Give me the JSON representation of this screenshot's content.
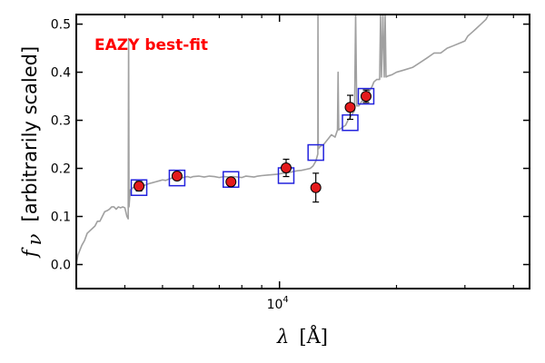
{
  "chart_data": {
    "type": "scatter",
    "title": "",
    "xlabel_var": "λ",
    "xlabel_unit": "[Å]",
    "ylabel_var": "f",
    "ylabel_sub": "ν",
    "ylabel_text": "[arbitrarily scaled]",
    "annotation": "EAZY best-fit",
    "x_scale": "log",
    "xlim": [
      3000,
      44000
    ],
    "ylim": [
      -0.05,
      0.52
    ],
    "yticks": [
      0.0,
      0.1,
      0.2,
      0.3,
      0.4,
      0.5
    ],
    "ytick_labels": [
      "0.0",
      "0.1",
      "0.2",
      "0.3",
      "0.4",
      "0.5"
    ],
    "xticks_major": [
      10000
    ],
    "xtick_major_labels": [
      {
        "base": "10",
        "exp": "4"
      }
    ],
    "xticks_minor": [
      4000,
      5000,
      6000,
      7000,
      8000,
      9000,
      20000,
      30000,
      40000
    ],
    "grid": false,
    "colors": {
      "observed_fill": "#e41a1c",
      "observed_edge": "#000000",
      "model_box": "#2222dd",
      "sed_line": "#a0a0a0",
      "annotation": "#ff0000"
    },
    "observed": [
      {
        "x": 4350,
        "y": 0.163,
        "yerr": 0.01
      },
      {
        "x": 5450,
        "y": 0.184,
        "yerr": 0.008
      },
      {
        "x": 7500,
        "y": 0.172,
        "yerr": 0.005
      },
      {
        "x": 10400,
        "y": 0.201,
        "yerr": 0.018
      },
      {
        "x": 12400,
        "y": 0.16,
        "yerr": 0.03
      },
      {
        "x": 15200,
        "y": 0.327,
        "yerr": 0.025
      },
      {
        "x": 16700,
        "y": 0.35,
        "yerr": 0.013
      }
    ],
    "model_fluxes": [
      {
        "x": 4350,
        "y": 0.16
      },
      {
        "x": 5450,
        "y": 0.18
      },
      {
        "x": 7500,
        "y": 0.177
      },
      {
        "x": 10400,
        "y": 0.185
      },
      {
        "x": 12400,
        "y": 0.233
      },
      {
        "x": 15200,
        "y": 0.295
      },
      {
        "x": 16700,
        "y": 0.35
      }
    ],
    "sed_spectrum": [
      [
        3000,
        0.0
      ],
      [
        3030,
        0.02
      ],
      [
        3100,
        0.04
      ],
      [
        3150,
        0.05
      ],
      [
        3200,
        0.065
      ],
      [
        3300,
        0.075
      ],
      [
        3350,
        0.08
      ],
      [
        3400,
        0.09
      ],
      [
        3450,
        0.09
      ],
      [
        3500,
        0.1
      ],
      [
        3550,
        0.11
      ],
      [
        3600,
        0.112
      ],
      [
        3650,
        0.115
      ],
      [
        3700,
        0.12
      ],
      [
        3750,
        0.12
      ],
      [
        3800,
        0.115
      ],
      [
        3850,
        0.12
      ],
      [
        3900,
        0.118
      ],
      [
        3950,
        0.12
      ],
      [
        4000,
        0.118
      ],
      [
        4050,
        0.1
      ],
      [
        4080,
        0.095
      ],
      [
        4090,
        0.47
      ],
      [
        4100,
        0.12
      ],
      [
        4130,
        0.155
      ],
      [
        4200,
        0.16
      ],
      [
        4300,
        0.165
      ],
      [
        4400,
        0.163
      ],
      [
        4500,
        0.165
      ],
      [
        4600,
        0.168
      ],
      [
        4700,
        0.17
      ],
      [
        4800,
        0.172
      ],
      [
        4900,
        0.174
      ],
      [
        5000,
        0.176
      ],
      [
        5100,
        0.175
      ],
      [
        5200,
        0.178
      ],
      [
        5300,
        0.18
      ],
      [
        5400,
        0.182
      ],
      [
        5500,
        0.183
      ],
      [
        5600,
        0.18
      ],
      [
        5700,
        0.182
      ],
      [
        5800,
        0.183
      ],
      [
        5900,
        0.181
      ],
      [
        6000,
        0.183
      ],
      [
        6200,
        0.184
      ],
      [
        6400,
        0.182
      ],
      [
        6600,
        0.184
      ],
      [
        6800,
        0.183
      ],
      [
        7000,
        0.181
      ],
      [
        7200,
        0.183
      ],
      [
        7400,
        0.182
      ],
      [
        7600,
        0.183
      ],
      [
        7800,
        0.182
      ],
      [
        8000,
        0.181
      ],
      [
        8200,
        0.184
      ],
      [
        8400,
        0.183
      ],
      [
        8600,
        0.182
      ],
      [
        8800,
        0.184
      ],
      [
        9000,
        0.185
      ],
      [
        9300,
        0.186
      ],
      [
        9600,
        0.187
      ],
      [
        9900,
        0.188
      ],
      [
        10200,
        0.19
      ],
      [
        10500,
        0.191
      ],
      [
        10800,
        0.193
      ],
      [
        11100,
        0.195
      ],
      [
        11400,
        0.196
      ],
      [
        11700,
        0.198
      ],
      [
        12000,
        0.2
      ],
      [
        12200,
        0.205
      ],
      [
        12400,
        0.215
      ],
      [
        12500,
        0.225
      ],
      [
        12550,
        0.23
      ],
      [
        12560,
        0.52
      ],
      [
        12580,
        0.24
      ],
      [
        12700,
        0.245
      ],
      [
        13000,
        0.25
      ],
      [
        13300,
        0.26
      ],
      [
        13600,
        0.27
      ],
      [
        13900,
        0.265
      ],
      [
        14100,
        0.28
      ],
      [
        14150,
        0.4
      ],
      [
        14200,
        0.28
      ],
      [
        14500,
        0.285
      ],
      [
        14800,
        0.29
      ],
      [
        15000,
        0.3
      ],
      [
        15300,
        0.31
      ],
      [
        15600,
        0.32
      ],
      [
        15700,
        0.52
      ],
      [
        15800,
        0.33
      ],
      [
        16000,
        0.33
      ],
      [
        16300,
        0.34
      ],
      [
        16600,
        0.345
      ],
      [
        16800,
        0.35
      ],
      [
        17000,
        0.36
      ],
      [
        17300,
        0.37
      ],
      [
        17500,
        0.38
      ],
      [
        17800,
        0.385
      ],
      [
        18100,
        0.385
      ],
      [
        18200,
        0.52
      ],
      [
        18300,
        0.39
      ],
      [
        18450,
        0.52
      ],
      [
        18600,
        0.39
      ],
      [
        18700,
        0.52
      ],
      [
        18800,
        0.39
      ],
      [
        19000,
        0.392
      ],
      [
        19500,
        0.395
      ],
      [
        20000,
        0.4
      ],
      [
        21000,
        0.405
      ],
      [
        22000,
        0.41
      ],
      [
        23000,
        0.42
      ],
      [
        24000,
        0.43
      ],
      [
        25000,
        0.44
      ],
      [
        26000,
        0.44
      ],
      [
        27000,
        0.45
      ],
      [
        28000,
        0.455
      ],
      [
        29000,
        0.46
      ],
      [
        30000,
        0.465
      ],
      [
        30500,
        0.475
      ],
      [
        31000,
        0.48
      ],
      [
        31500,
        0.485
      ],
      [
        32000,
        0.49
      ],
      [
        33000,
        0.5
      ],
      [
        34000,
        0.51
      ],
      [
        34500,
        0.52
      ]
    ]
  }
}
